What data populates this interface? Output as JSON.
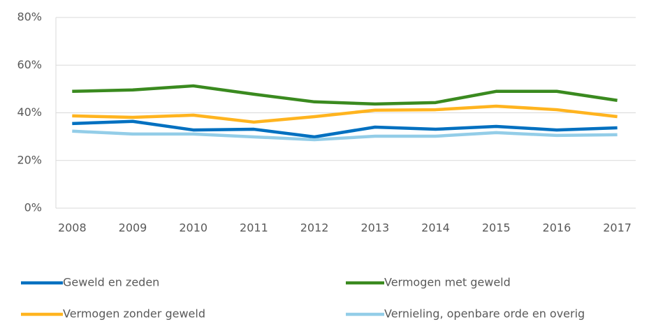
{
  "chart_data": {
    "type": "line",
    "categories": [
      "2008",
      "2009",
      "2010",
      "2011",
      "2012",
      "2013",
      "2014",
      "2015",
      "2016",
      "2017"
    ],
    "series": [
      {
        "name": "Geweld en zeden",
        "color": "#0070c0",
        "values": [
          35.5,
          36.4,
          32.8,
          33.1,
          29.9,
          34.0,
          33.1,
          34.3,
          32.8,
          33.7
        ]
      },
      {
        "name": "Vermogen met geweld",
        "color": "#3a8a1f",
        "values": [
          49.0,
          49.6,
          51.3,
          47.8,
          44.6,
          43.7,
          44.3,
          49.0,
          49.0,
          45.2
        ]
      },
      {
        "name": "Vermogen zonder geweld",
        "color": "#ffb41f",
        "values": [
          38.7,
          38.1,
          39.0,
          36.1,
          38.4,
          41.1,
          41.3,
          42.8,
          41.3,
          38.4
        ]
      },
      {
        "name": "Vernieling, openbare orde en overig",
        "color": "#93cde8",
        "values": [
          32.3,
          31.1,
          31.1,
          29.9,
          28.7,
          30.2,
          30.2,
          31.7,
          30.5,
          30.8
        ]
      }
    ],
    "ylim": [
      0,
      80
    ],
    "yticks": [
      {
        "value": 0,
        "label": "0%"
      },
      {
        "value": 20,
        "label": "20%"
      },
      {
        "value": 40,
        "label": "40%"
      },
      {
        "value": 60,
        "label": "60%"
      },
      {
        "value": 80,
        "label": "80%"
      }
    ],
    "grid": true
  }
}
